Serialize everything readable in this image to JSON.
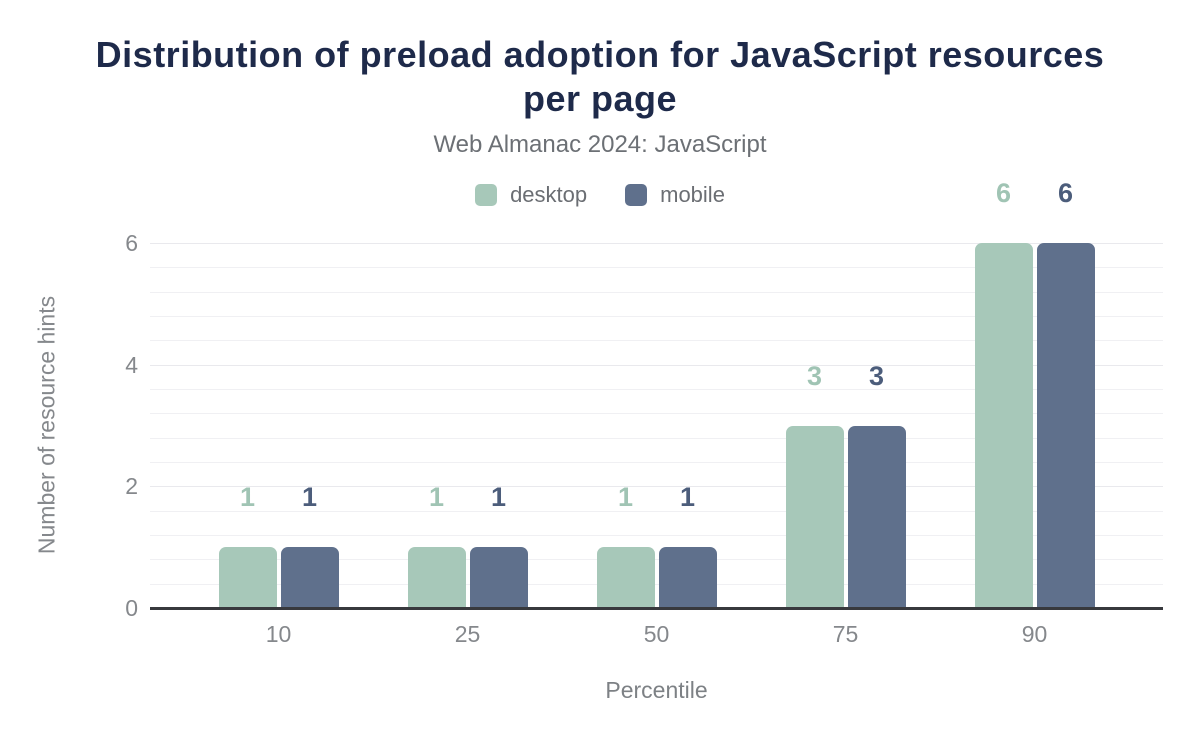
{
  "chart_data": {
    "type": "bar",
    "title": "Distribution of preload adoption for JavaScript resources per page",
    "subtitle": "Web Almanac 2024: JavaScript",
    "xlabel": "Percentile",
    "ylabel": "Number of resource hints",
    "categories": [
      "10",
      "25",
      "50",
      "75",
      "90"
    ],
    "series": [
      {
        "name": "desktop",
        "color": "#a7c8b9",
        "label_color": "#a0c4b4",
        "values": [
          1,
          1,
          1,
          3,
          6
        ]
      },
      {
        "name": "mobile",
        "color": "#5f708c",
        "label_color": "#4c5d7b",
        "values": [
          1,
          1,
          1,
          3,
          6
        ]
      }
    ],
    "ylim": [
      0,
      6
    ],
    "yticks": [
      0,
      2,
      4,
      6
    ],
    "minor_grid_step": 0.4,
    "grid": true,
    "legend_position": "top"
  },
  "colors": {
    "title": "#1e2a4a",
    "subtitle": "#6c7075",
    "axis_text": "#85888c",
    "axis_line": "#38393d",
    "grid_minor": "#f0f0f3",
    "grid_major": "#e9e9ed",
    "background": "#ffffff"
  }
}
